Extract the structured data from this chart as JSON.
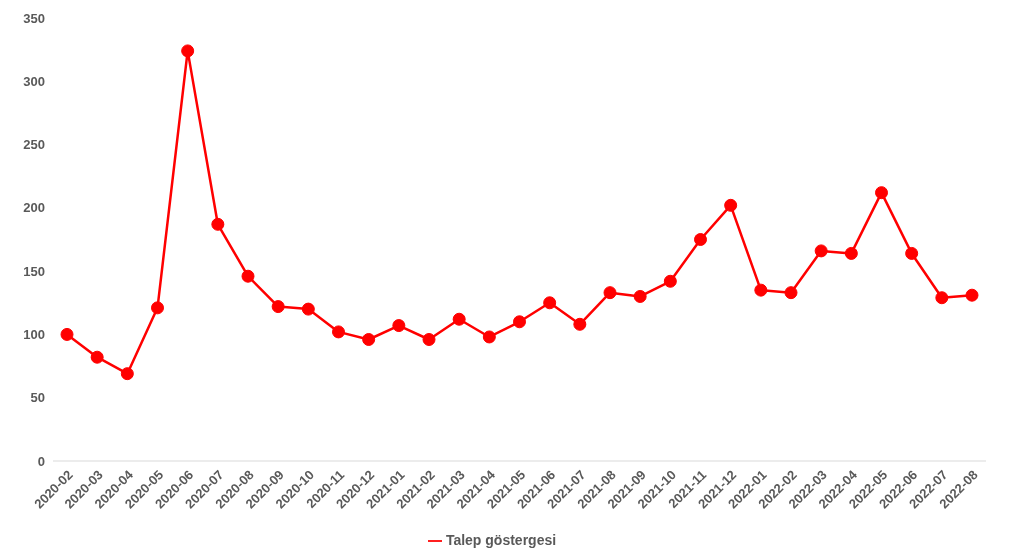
{
  "chart_data": {
    "type": "line",
    "categories": [
      "2020-02",
      "2020-03",
      "2020-04",
      "2020-05",
      "2020-06",
      "2020-07",
      "2020-08",
      "2020-09",
      "2020-10",
      "2020-11",
      "2020-12",
      "2021-01",
      "2021-02",
      "2021-03",
      "2021-04",
      "2021-05",
      "2021-06",
      "2021-07",
      "2021-08",
      "2021-09",
      "2021-10",
      "2021-11",
      "2021-12",
      "2022-01",
      "2022-02",
      "2022-03",
      "2022-04",
      "2022-05",
      "2022-06",
      "2022-07",
      "2022-08"
    ],
    "series": [
      {
        "name": "Talep göstergesi",
        "color": "#ff0000",
        "values": [
          100,
          82,
          69,
          121,
          324,
          187,
          146,
          122,
          120,
          102,
          96,
          107,
          96,
          112,
          98,
          110,
          125,
          108,
          133,
          130,
          142,
          175,
          202,
          135,
          133,
          166,
          164,
          212,
          164,
          129,
          131
        ]
      }
    ],
    "ylim": [
      0,
      350
    ],
    "yticks": [
      0,
      50,
      100,
      150,
      200,
      250,
      300,
      350
    ],
    "grid": false,
    "legend": "bottom",
    "marker": "circle",
    "line_style": "solid"
  }
}
